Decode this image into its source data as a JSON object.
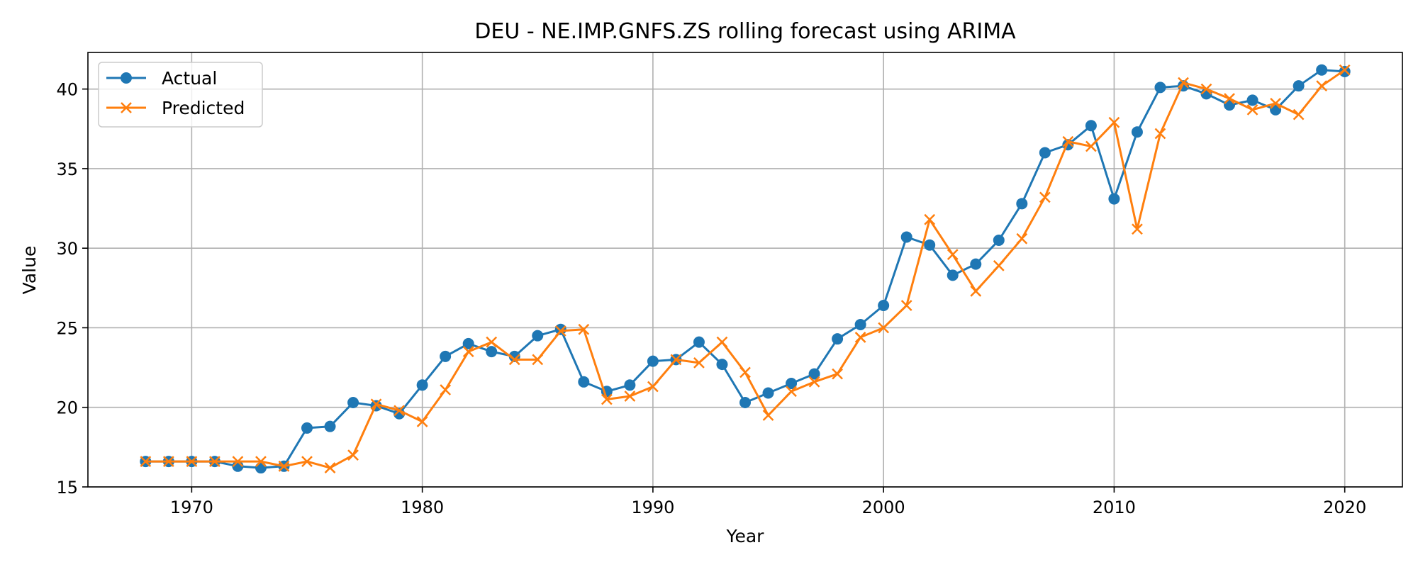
{
  "chart_data": {
    "type": "line",
    "title": "DEU - NE.IMP.GNFS.ZS rolling forecast using ARIMA",
    "xlabel": "Year",
    "ylabel": "Value",
    "xlim": [
      1965.5,
      2022.5
    ],
    "ylim": [
      15,
      42.3
    ],
    "xticks": [
      1970,
      1980,
      1990,
      2000,
      2010,
      2020
    ],
    "yticks": [
      15,
      20,
      25,
      30,
      35,
      40
    ],
    "grid": true,
    "legend_position": "upper-left",
    "x": [
      1968,
      1969,
      1970,
      1971,
      1972,
      1973,
      1974,
      1975,
      1976,
      1977,
      1978,
      1979,
      1980,
      1981,
      1982,
      1983,
      1984,
      1985,
      1986,
      1987,
      1988,
      1989,
      1990,
      1991,
      1992,
      1993,
      1994,
      1995,
      1996,
      1997,
      1998,
      1999,
      2000,
      2001,
      2002,
      2003,
      2004,
      2005,
      2006,
      2007,
      2008,
      2009,
      2010,
      2011,
      2012,
      2013,
      2014,
      2015,
      2016,
      2017,
      2018,
      2019,
      2020
    ],
    "series": [
      {
        "name": "Actual",
        "color": "#1f77b4",
        "marker": "circle",
        "values": [
          16.6,
          16.6,
          16.6,
          16.6,
          16.3,
          16.2,
          16.3,
          18.7,
          18.8,
          20.3,
          20.1,
          19.6,
          21.4,
          23.2,
          24.0,
          23.5,
          23.2,
          24.5,
          24.9,
          21.6,
          21.0,
          21.4,
          22.9,
          23.0,
          24.1,
          22.7,
          20.3,
          20.9,
          21.5,
          22.1,
          24.3,
          25.2,
          26.4,
          30.7,
          30.2,
          28.3,
          29.0,
          30.5,
          32.8,
          36.0,
          36.5,
          37.7,
          33.1,
          37.3,
          40.1,
          40.2,
          39.7,
          39.0,
          39.3,
          38.7,
          40.2,
          41.2,
          41.1
        ]
      },
      {
        "name": "Predicted",
        "color": "#ff7f0e",
        "marker": "x",
        "values": [
          16.6,
          16.6,
          16.6,
          16.6,
          16.6,
          16.6,
          16.3,
          16.6,
          16.2,
          17.0,
          20.2,
          19.8,
          19.1,
          21.1,
          23.5,
          24.1,
          23.0,
          23.0,
          24.8,
          24.9,
          20.5,
          20.7,
          21.3,
          23.0,
          22.8,
          24.1,
          22.2,
          19.5,
          21.0,
          21.6,
          22.1,
          24.4,
          25.0,
          26.4,
          31.8,
          29.6,
          27.3,
          28.9,
          30.6,
          33.2,
          36.7,
          36.4,
          37.9,
          31.2,
          37.2,
          40.4,
          40.0,
          39.4,
          38.7,
          39.1,
          38.4,
          40.2,
          41.2
        ]
      }
    ]
  }
}
